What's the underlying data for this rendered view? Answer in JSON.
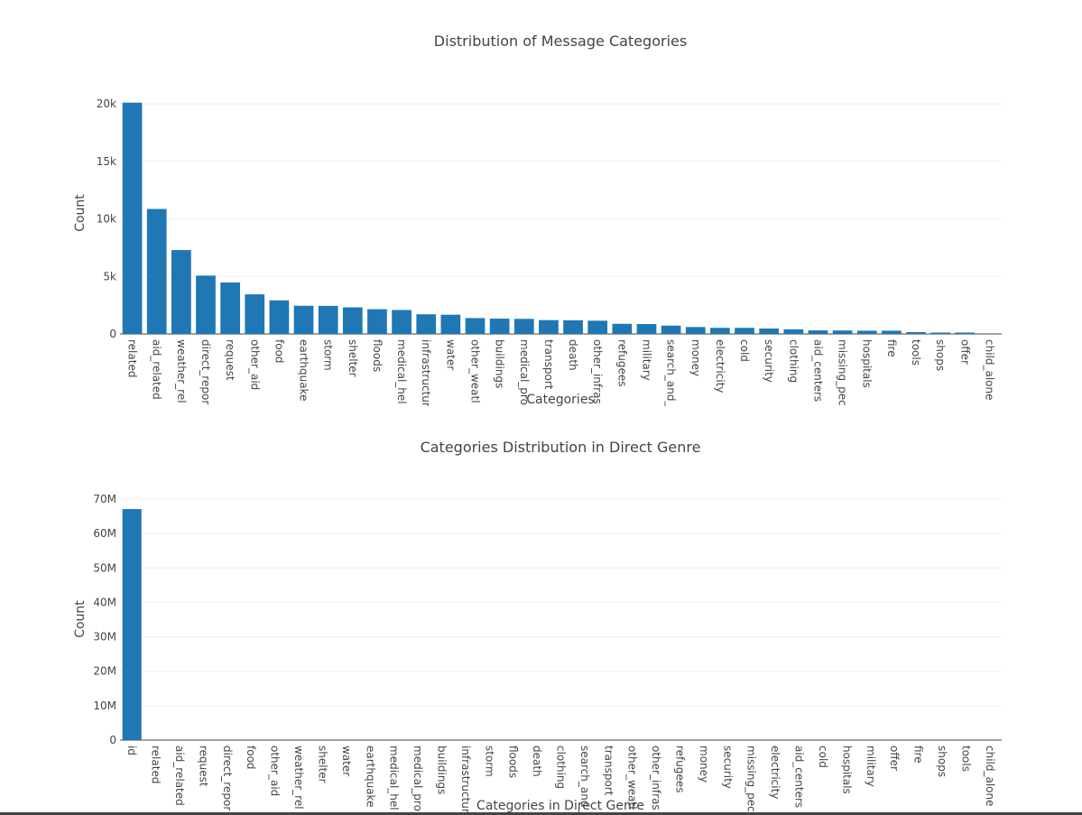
{
  "chart_data": [
    {
      "type": "bar",
      "title": "Distribution of Message Categories",
      "xlabel": "Categories",
      "ylabel": "Count",
      "ylim": [
        0,
        20000
      ],
      "yticks": [
        0,
        5000,
        10000,
        15000,
        20000
      ],
      "ytick_labels": [
        "0",
        "5k",
        "10k",
        "15k",
        "20k"
      ],
      "categories": [
        "related",
        "aid_related",
        "weather_rel",
        "direct_repor",
        "request",
        "other_aid",
        "food",
        "earthquake",
        "storm",
        "shelter",
        "floods",
        "medical_hel",
        "infrastructur",
        "water",
        "other_weatl",
        "buildings",
        "medical_pro",
        "transport",
        "death",
        "other_infras",
        "refugees",
        "military",
        "search_and_",
        "money",
        "electricity",
        "cold",
        "security",
        "clothing",
        "aid_centers",
        "missing_pec",
        "hospitals",
        "fire",
        "tools",
        "shops",
        "offer",
        "child_alone"
      ],
      "values": [
        20100,
        10860,
        7290,
        5070,
        4470,
        3440,
        2920,
        2450,
        2440,
        2310,
        2150,
        2080,
        1710,
        1670,
        1380,
        1330,
        1310,
        1200,
        1190,
        1150,
        880,
        860,
        720,
        600,
        530,
        530,
        470,
        400,
        310,
        300,
        280,
        280,
        160,
        120,
        120,
        0
      ],
      "color": "#1f77b4",
      "grid": true
    },
    {
      "type": "bar",
      "title": "Categories Distribution in Direct Genre",
      "xlabel": "Categories in Direct Genre",
      "ylabel": "Count",
      "ylim": [
        0,
        70000000
      ],
      "yticks": [
        0,
        10000000,
        20000000,
        30000000,
        40000000,
        50000000,
        60000000,
        70000000
      ],
      "ytick_labels": [
        "0",
        "10M",
        "20M",
        "30M",
        "40M",
        "50M",
        "60M",
        "70M"
      ],
      "categories": [
        "id",
        "related",
        "aid_related",
        "request",
        "direct_repor",
        "food",
        "other_aid",
        "weather_rel",
        "shelter",
        "water",
        "earthquake",
        "medical_hel",
        "medical_pro",
        "buildings",
        "infrastructur",
        "storm",
        "floods",
        "death",
        "clothing",
        "search_and_",
        "transport",
        "other_weatl",
        "other_infras",
        "refugees",
        "money",
        "security",
        "missing_pec",
        "electricity",
        "aid_centers",
        "cold",
        "hospitals",
        "military",
        "offer",
        "fire",
        "shops",
        "tools",
        "child_alone"
      ],
      "values": [
        67100000,
        0,
        0,
        0,
        0,
        0,
        0,
        0,
        0,
        0,
        0,
        0,
        0,
        0,
        0,
        0,
        0,
        0,
        0,
        0,
        0,
        0,
        0,
        0,
        0,
        0,
        0,
        0,
        0,
        0,
        0,
        0,
        0,
        0,
        0,
        0,
        0
      ],
      "color": "#1f77b4",
      "grid": true
    }
  ]
}
